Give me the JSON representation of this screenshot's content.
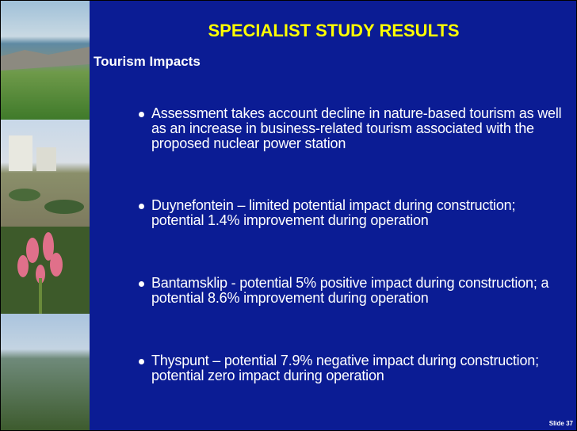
{
  "title": "SPECIALIST STUDY RESULTS",
  "subtitle": "Tourism Impacts",
  "bullets": [
    "Assessment takes account decline in nature-based tourism as well as an increase in business-related tourism associated with the proposed nuclear power station",
    "Duynefontein – limited potential impact during construction; potential 1.4% improvement during operation",
    "Bantamsklip  - potential 5% positive impact during construction; a potential 8.6% improvement during operation",
    "Thyspunt – potential 7.9% negative impact during construction; potential zero impact during operation"
  ],
  "footer": "Slide 37"
}
